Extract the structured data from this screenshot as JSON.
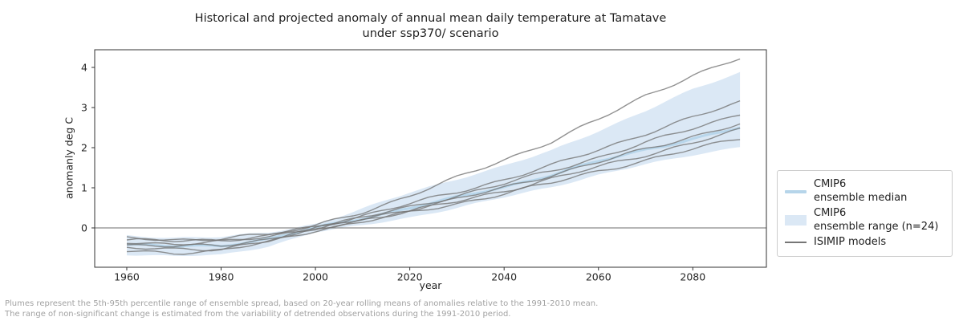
{
  "title": {
    "line1": "Historical and projected anomaly of annual mean daily temperature at Tamatave",
    "line2": "under ssp370/ scenario"
  },
  "footer": {
    "line1": "Plumes represent the 5th-95th percentile range of ensemble spread, based on 20-year rolling means of anomalies relative to the 1991-2010 mean.",
    "line2": "The range of non-significant change is estimated from the variability of detrended observations during the 1991-2010 period."
  },
  "colors": {
    "ensemble_median": "#b6d5ea",
    "ensemble_range": "#dbe8f5",
    "isimip_line": "#767676",
    "zero_line": "#8b8b8b",
    "axis": "#333333",
    "tick_text": "#262626",
    "footer_text": "#a2a2a2",
    "legend_border": "#cccccc"
  },
  "chart_data": {
    "type": "line",
    "title": "Historical and projected anomaly of annual mean daily temperature at Tamatave under ssp370/ scenario",
    "xlabel": "year",
    "ylabel": "anomanly deg C",
    "xlim": [
      1953.2,
      2095.6
    ],
    "ylim": [
      -0.98,
      4.44
    ],
    "xticks": [
      1960,
      1980,
      2000,
      2020,
      2040,
      2060,
      2080
    ],
    "yticks": [
      0,
      1,
      2,
      3,
      4
    ],
    "grid": false,
    "legend_position": "center right, outside axes",
    "zero_line": 0,
    "x": [
      1960,
      1970,
      1980,
      1990,
      2000,
      2010,
      2020,
      2030,
      2040,
      2050,
      2060,
      2070,
      2080,
      2090
    ],
    "series": [
      {
        "name": "ISIMIP model 1",
        "values": [
          -0.3,
          -0.33,
          -0.3,
          -0.2,
          0.05,
          0.4,
          0.8,
          1.25,
          1.7,
          2.15,
          2.7,
          3.3,
          3.8,
          4.22
        ]
      },
      {
        "name": "ISIMIP model 2",
        "values": [
          -0.26,
          -0.3,
          -0.26,
          -0.16,
          0.03,
          0.3,
          0.6,
          0.9,
          1.2,
          1.55,
          1.95,
          2.35,
          2.75,
          3.14
        ]
      },
      {
        "name": "ISIMIP model 3",
        "values": [
          -0.35,
          -0.4,
          -0.35,
          -0.22,
          0.0,
          0.26,
          0.52,
          0.8,
          1.1,
          1.42,
          1.76,
          2.12,
          2.48,
          2.84
        ]
      },
      {
        "name": "ISIMIP model 4",
        "values": [
          -0.42,
          -0.46,
          -0.44,
          -0.28,
          -0.02,
          0.22,
          0.46,
          0.72,
          1.0,
          1.32,
          1.64,
          1.96,
          2.28,
          2.6
        ]
      },
      {
        "name": "ISIMIP model 5",
        "values": [
          -0.5,
          -0.54,
          -0.52,
          -0.32,
          -0.04,
          0.2,
          0.42,
          0.66,
          0.92,
          1.22,
          1.52,
          1.82,
          2.12,
          2.44
        ]
      },
      {
        "name": "ISIMIP model 6",
        "values": [
          -0.58,
          -0.62,
          -0.56,
          -0.36,
          -0.06,
          0.16,
          0.38,
          0.6,
          0.86,
          1.12,
          1.42,
          1.68,
          1.96,
          2.24
        ]
      },
      {
        "name": "CMIP6 ensemble median",
        "values": [
          -0.42,
          -0.46,
          -0.44,
          -0.28,
          0.0,
          0.24,
          0.5,
          0.76,
          1.02,
          1.32,
          1.66,
          1.95,
          2.22,
          2.5
        ]
      }
    ],
    "band": {
      "name": "CMIP6 ensemble range (n=24)",
      "low": [
        -0.66,
        -0.7,
        -0.68,
        -0.46,
        -0.1,
        0.06,
        0.26,
        0.5,
        0.76,
        1.02,
        1.32,
        1.58,
        1.82,
        2.02
      ],
      "high": [
        -0.2,
        -0.24,
        -0.22,
        -0.12,
        0.1,
        0.48,
        0.88,
        1.22,
        1.55,
        1.92,
        2.42,
        2.92,
        3.45,
        3.88
      ]
    },
    "legend": {
      "entries": [
        {
          "name": "cmip6-median",
          "swatch": "line-thick",
          "swatch_color": "#b6d5ea",
          "lines": [
            "CMIP6",
            "ensemble median"
          ]
        },
        {
          "name": "cmip6-range",
          "swatch": "patch",
          "swatch_color": "#dbe8f5",
          "lines": [
            "CMIP6",
            "ensemble range (n=24)"
          ]
        },
        {
          "name": "isimip-models",
          "swatch": "line-thin",
          "swatch_color": "#767676",
          "lines": [
            "ISIMIP models"
          ]
        }
      ]
    }
  }
}
